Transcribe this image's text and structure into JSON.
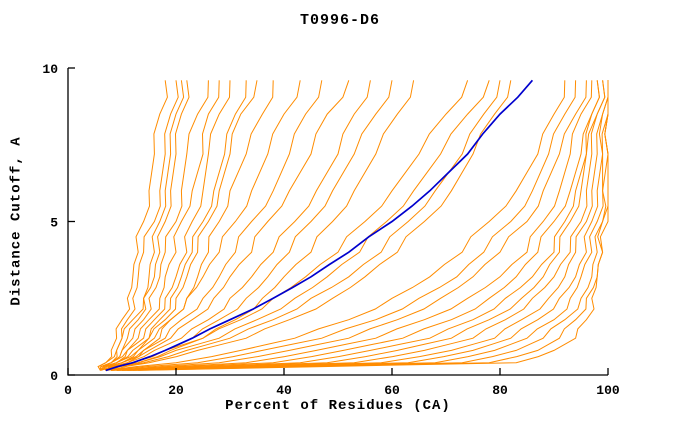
{
  "chart_data": {
    "type": "line",
    "title": "T0996-D6",
    "xlabel": "Percent of Residues (CA)",
    "ylabel": "Distance Cutoff, A",
    "xlim": [
      0,
      100
    ],
    "ylim": [
      0,
      10
    ],
    "x_ticks": [
      0,
      20,
      40,
      60,
      80,
      100
    ],
    "y_ticks": [
      0,
      5,
      10
    ],
    "grid": false,
    "legend": "none",
    "colors": {
      "models": "#ff8c00",
      "highlight": "#0000cd",
      "axis": "#000000"
    },
    "y_grid": [
      0.15,
      0.4,
      0.8,
      1.2,
      1.8,
      2.5,
      3.2,
      4.0,
      5.0,
      6.0,
      7.2,
      8.5,
      9.6
    ],
    "highlight_series": {
      "name": "highlighted-model",
      "x": [
        7,
        12,
        18,
        23,
        30,
        38,
        45,
        52,
        60,
        67,
        74,
        80,
        86
      ]
    },
    "series": [
      {
        "x": [
          6,
          7,
          8,
          9,
          10,
          11,
          12,
          13,
          14,
          15,
          16,
          17,
          18
        ]
      },
      {
        "x": [
          6,
          8,
          9,
          10,
          11,
          12,
          13,
          14,
          16,
          17,
          18,
          19,
          20
        ]
      },
      {
        "x": [
          7,
          8,
          10,
          11,
          13,
          14,
          15,
          16,
          17,
          18,
          19,
          20,
          21
        ]
      },
      {
        "x": [
          6,
          7,
          9,
          10,
          12,
          14,
          16,
          17,
          18,
          19,
          20,
          21,
          22
        ]
      },
      {
        "x": [
          6,
          8,
          10,
          12,
          14,
          15,
          17,
          18,
          20,
          21,
          22,
          24,
          26
        ]
      },
      {
        "x": [
          7,
          9,
          11,
          13,
          15,
          17,
          18,
          20,
          21,
          23,
          25,
          26,
          28
        ]
      },
      {
        "x": [
          6,
          8,
          11,
          14,
          16,
          18,
          20,
          22,
          23,
          25,
          26,
          28,
          30
        ]
      },
      {
        "x": [
          7,
          10,
          13,
          15,
          17,
          19,
          21,
          23,
          25,
          27,
          29,
          31,
          33
        ]
      },
      {
        "x": [
          6,
          9,
          12,
          15,
          18,
          20,
          22,
          24,
          26,
          28,
          30,
          32,
          35
        ]
      },
      {
        "x": [
          8,
          11,
          14,
          17,
          19,
          22,
          24,
          26,
          28,
          30,
          33,
          36,
          38
        ]
      },
      {
        "x": [
          6,
          9,
          13,
          16,
          19,
          22,
          25,
          28,
          31,
          34,
          37,
          40,
          43
        ]
      },
      {
        "x": [
          7,
          10,
          14,
          18,
          21,
          25,
          28,
          31,
          34,
          38,
          41,
          44,
          47
        ]
      },
      {
        "x": [
          6,
          10,
          15,
          19,
          23,
          27,
          30,
          34,
          37,
          41,
          45,
          48,
          52
        ]
      },
      {
        "x": [
          7,
          11,
          16,
          21,
          26,
          30,
          34,
          38,
          42,
          46,
          50,
          53,
          56
        ]
      },
      {
        "x": [
          6,
          12,
          18,
          23,
          28,
          33,
          37,
          41,
          45,
          49,
          53,
          57,
          60
        ]
      },
      {
        "x": [
          8,
          13,
          19,
          25,
          31,
          36,
          40,
          45,
          49,
          53,
          57,
          61,
          64
        ]
      },
      {
        "x": [
          7,
          12,
          18,
          25,
          32,
          38,
          44,
          50,
          55,
          60,
          65,
          70,
          74
        ]
      },
      {
        "x": [
          6,
          13,
          20,
          28,
          35,
          42,
          48,
          54,
          59,
          64,
          69,
          74,
          78
        ]
      },
      {
        "x": [
          7,
          14,
          22,
          30,
          38,
          45,
          52,
          58,
          63,
          68,
          73,
          77,
          80
        ]
      },
      {
        "x": [
          8,
          15,
          24,
          33,
          41,
          49,
          55,
          61,
          66,
          71,
          75,
          79,
          82
        ]
      },
      {
        "x": [
          7,
          20,
          32,
          42,
          52,
          60,
          67,
          73,
          78,
          83,
          87,
          90,
          92
        ]
      },
      {
        "x": [
          7,
          24,
          36,
          47,
          57,
          65,
          72,
          77,
          82,
          86,
          89,
          92,
          94
        ]
      },
      {
        "x": [
          8,
          28,
          41,
          52,
          61,
          69,
          75,
          80,
          85,
          88,
          91,
          94,
          96
        ]
      },
      {
        "x": [
          8,
          33,
          46,
          57,
          66,
          74,
          80,
          85,
          88,
          91,
          93,
          95,
          97
        ]
      },
      {
        "x": [
          8,
          38,
          51,
          62,
          71,
          78,
          83,
          87,
          90,
          93,
          95,
          97,
          98
        ]
      },
      {
        "x": [
          9,
          43,
          56,
          67,
          75,
          81,
          86,
          90,
          92,
          94,
          96,
          97,
          98
        ]
      },
      {
        "x": [
          9,
          48,
          61,
          71,
          78,
          84,
          88,
          91,
          93,
          95,
          96,
          98,
          99
        ]
      },
      {
        "x": [
          9,
          53,
          66,
          75,
          81,
          86,
          90,
          93,
          95,
          96,
          97,
          98,
          99
        ]
      },
      {
        "x": [
          10,
          58,
          71,
          79,
          84,
          89,
          92,
          94,
          96,
          97,
          98,
          99,
          100
        ]
      },
      {
        "x": [
          10,
          63,
          75,
          82,
          87,
          91,
          94,
          96,
          97,
          98,
          99,
          99,
          100
        ]
      },
      {
        "x": [
          11,
          68,
          79,
          85,
          90,
          93,
          95,
          97,
          98,
          99,
          99,
          100,
          100
        ]
      },
      {
        "x": [
          11,
          73,
          83,
          88,
          92,
          95,
          97,
          98,
          99,
          99,
          100,
          100,
          100
        ]
      },
      {
        "x": [
          12,
          78,
          87,
          91,
          94,
          96,
          98,
          99,
          99,
          100,
          100,
          100,
          100
        ]
      },
      {
        "x": [
          13,
          83,
          90,
          94,
          96,
          97,
          98,
          99,
          100,
          100,
          100,
          100,
          100
        ]
      }
    ]
  }
}
